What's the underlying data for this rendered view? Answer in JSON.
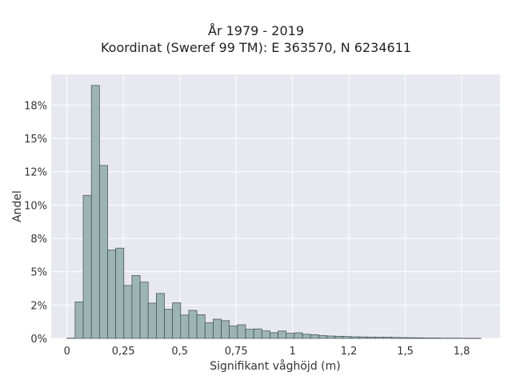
{
  "chart_data": {
    "type": "bar",
    "title_lines": [
      "År 1979 - 2019",
      "Koordinat (Sweref 99 TM): E 363570, N 6234611"
    ],
    "xlabel": "Signifikant våghöjd (m)",
    "ylabel": "Andel",
    "xlim": [
      -0.07,
      1.92
    ],
    "ylim": [
      0,
      0.198
    ],
    "x_ticks": [
      0,
      0.25,
      0.5,
      0.75,
      1,
      1.25,
      1.5,
      1.75
    ],
    "x_tick_labels": [
      "0",
      "0,25",
      "0,5",
      "0,75",
      "1",
      "1,2",
      "1,5",
      "1,8"
    ],
    "y_ticks": [
      0,
      0.025,
      0.05,
      0.075,
      0.1,
      0.125,
      0.15,
      0.175
    ],
    "y_tick_labels": [
      "0%",
      "2%",
      "5%",
      "8%",
      "10%",
      "12%",
      "15%",
      "18%"
    ],
    "bin_width": 0.036,
    "bin_start": 0.0,
    "values": [
      0.0002,
      0.0274,
      0.1073,
      0.1897,
      0.1297,
      0.0663,
      0.0677,
      0.0397,
      0.0471,
      0.0422,
      0.0264,
      0.0337,
      0.0218,
      0.0267,
      0.0175,
      0.021,
      0.0178,
      0.0117,
      0.0144,
      0.0133,
      0.0093,
      0.0102,
      0.0068,
      0.0071,
      0.0056,
      0.0043,
      0.0055,
      0.0038,
      0.0042,
      0.0031,
      0.0028,
      0.0021,
      0.0018,
      0.0016,
      0.0014,
      0.0012,
      0.0011,
      0.001,
      0.0009,
      0.0009,
      0.0007,
      0.0006,
      0.0005,
      0.0004,
      0.0003,
      0.0003,
      0.0002,
      0.0002,
      0.0002,
      0.0001,
      0.0001
    ],
    "grid": true,
    "colors": {
      "bar_fill": "#9db4b4",
      "bar_edge": "#3a4a4a",
      "plot_background": "#e8e8f0",
      "grid": "#ffffff"
    }
  }
}
